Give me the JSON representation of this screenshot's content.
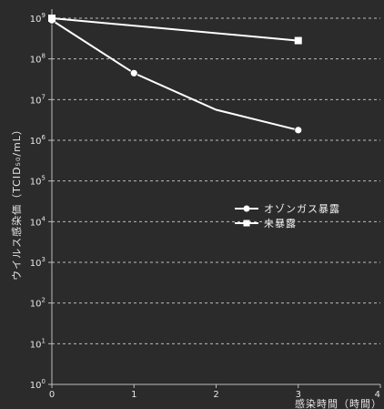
{
  "chart_data": {
    "type": "line",
    "title": "",
    "xlabel": "感染時間（時間）",
    "ylabel": "ウイルス感染価（TCID₅₀/mL）",
    "x_ticks": [
      "0",
      "1",
      "2",
      "3",
      "4"
    ],
    "xlim": [
      0,
      4
    ],
    "y_scale": "log",
    "ylim_exponent": [
      0,
      9
    ],
    "y_ticks": [
      {
        "base": "10",
        "exp": "0"
      },
      {
        "base": "10",
        "exp": "1"
      },
      {
        "base": "10",
        "exp": "2"
      },
      {
        "base": "10",
        "exp": "3"
      },
      {
        "base": "10",
        "exp": "4"
      },
      {
        "base": "10",
        "exp": "5"
      },
      {
        "base": "10",
        "exp": "6"
      },
      {
        "base": "10",
        "exp": "7"
      },
      {
        "base": "10",
        "exp": "8"
      },
      {
        "base": "10",
        "exp": "9"
      }
    ],
    "grid": "horizontal dashed",
    "legend_position": "right-middle",
    "series": [
      {
        "name": "オゾンガス暴露",
        "marker": "circle",
        "color": "#ffffff",
        "points": [
          {
            "x": 0,
            "y_log10": 8.95,
            "marker": true
          },
          {
            "x": 1,
            "y_log10": 7.65,
            "marker": true
          },
          {
            "x": 2,
            "y_log10": 6.75,
            "marker": false
          },
          {
            "x": 3,
            "y_log10": 6.25,
            "marker": true
          }
        ]
      },
      {
        "name": "未暴露",
        "marker": "square",
        "color": "#ffffff",
        "points": [
          {
            "x": 0,
            "y_log10": 9.0,
            "marker": true
          },
          {
            "x": 3,
            "y_log10": 8.45,
            "marker": true
          }
        ]
      }
    ]
  },
  "colors": {
    "background": "#2b2b2b",
    "grid": "#bdbdbd",
    "line": "#ffffff"
  }
}
